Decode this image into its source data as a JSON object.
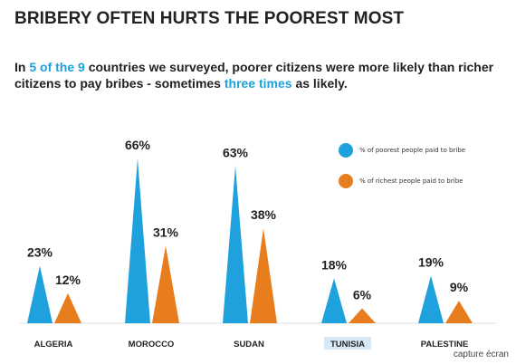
{
  "header": {
    "title": "BRIBERY OFTEN HURTS THE POOREST MOST",
    "subtitle_parts": [
      {
        "text": "In ",
        "highlight": false
      },
      {
        "text": "5 of the 9",
        "highlight": true
      },
      {
        "text": " countries we surveyed, poorer citizens were more likely than richer citizens to pay bribes - sometimes ",
        "highlight": false
      },
      {
        "text": "three times",
        "highlight": true
      },
      {
        "text": " as likely.",
        "highlight": false
      }
    ]
  },
  "chart_data": {
    "type": "bar",
    "categories": [
      "ALGERIA",
      "MOROCCO",
      "SUDAN",
      "TUNISIA",
      "PALESTINE"
    ],
    "series": [
      {
        "name": "% of poorest people paid to bribe",
        "values": [
          23,
          66,
          63,
          18,
          19
        ],
        "color": "#1ea1dd"
      },
      {
        "name": "% of richest people paid to bribe",
        "values": [
          12,
          31,
          38,
          6,
          9
        ],
        "color": "#e87d1e"
      }
    ],
    "value_labels": {
      "poorest": [
        "23%",
        "66%",
        "63%",
        "18%",
        "19%"
      ],
      "richest": [
        "12%",
        "31%",
        "38%",
        "6%",
        "9%"
      ]
    },
    "title": "BRIBERY OFTEN HURTS THE POOREST MOST",
    "xlabel": "",
    "ylabel": "",
    "ylim": [
      0,
      66
    ],
    "grid": false,
    "legend_position": "top-right",
    "highlighted_category": "TUNISIA",
    "highlight_color": "#d7e9f7"
  },
  "legend": {
    "items": [
      {
        "label": "% of poorest people paid to bribe",
        "color": "#1ea1dd"
      },
      {
        "label": "% of richest people paid to bribe",
        "color": "#e87d1e"
      }
    ]
  },
  "watermark": {
    "text": "capture écran"
  }
}
